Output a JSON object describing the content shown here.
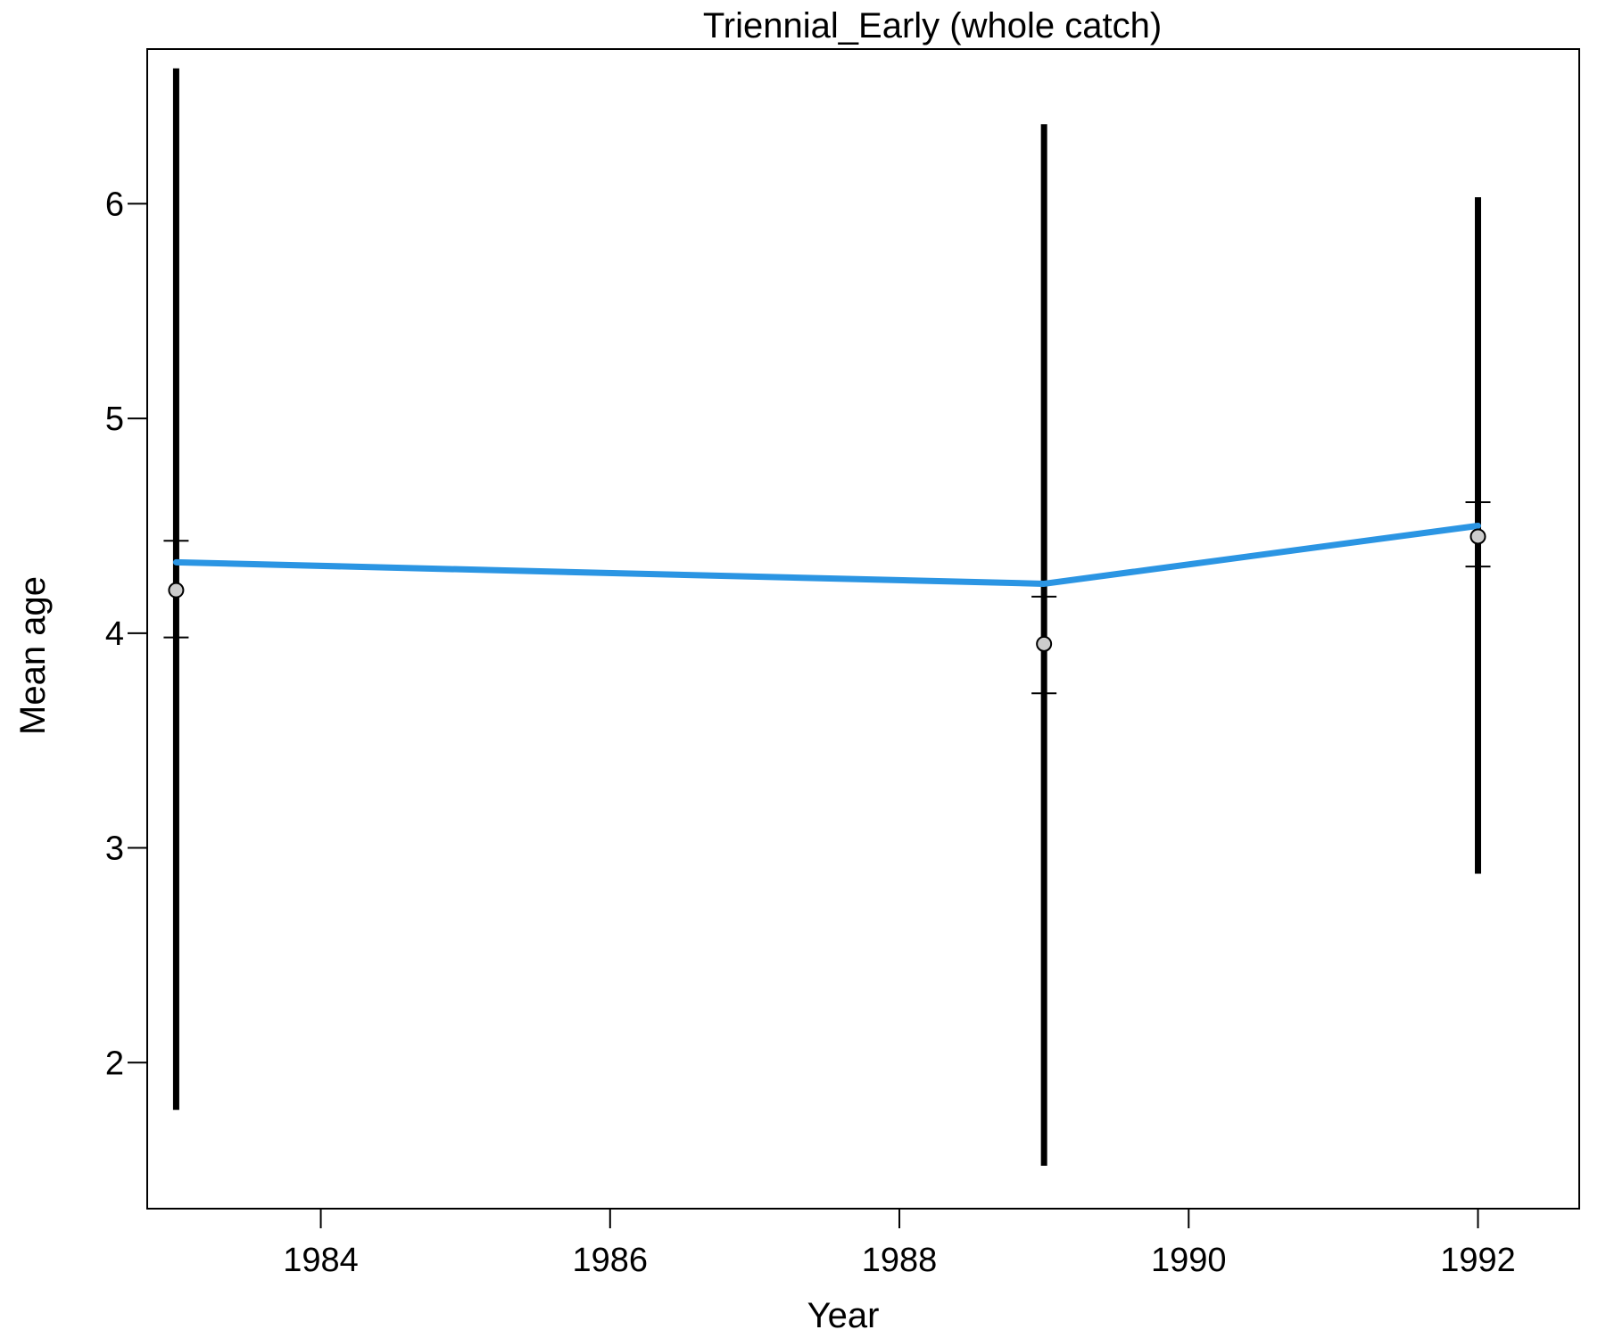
{
  "chart_data": {
    "type": "line",
    "title": "Triennial_Early (whole catch)",
    "xlabel": "Year",
    "ylabel": "Mean age",
    "xlim": [
      1982.8,
      1992.7
    ],
    "ylim": [
      1.32,
      6.72
    ],
    "xticks": [
      1984,
      1986,
      1988,
      1990,
      1992
    ],
    "xtick_labels": [
      "1984",
      "1986",
      "1988",
      "1990",
      "1992"
    ],
    "yticks": [
      2,
      3,
      4,
      5,
      6
    ],
    "ytick_labels": [
      "2",
      "3",
      "4",
      "5",
      "6"
    ],
    "grid": false,
    "legend": "none",
    "colors": {
      "expected_line": "#2b95e3",
      "observed_point_fill": "#cccccc",
      "interval": "#000000"
    },
    "series": [
      {
        "kind": "expected",
        "x": [
          1983,
          1989,
          1992
        ],
        "y": [
          4.33,
          4.23,
          4.5
        ]
      },
      {
        "kind": "observed",
        "x": [
          1983,
          1989,
          1992
        ],
        "y": [
          4.2,
          3.95,
          4.45
        ],
        "inner_low": [
          3.98,
          3.72,
          4.31
        ],
        "inner_high": [
          4.43,
          4.17,
          4.61
        ],
        "outer_low": [
          1.78,
          1.52,
          2.88
        ],
        "outer_high": [
          6.63,
          6.37,
          6.03
        ]
      }
    ]
  }
}
